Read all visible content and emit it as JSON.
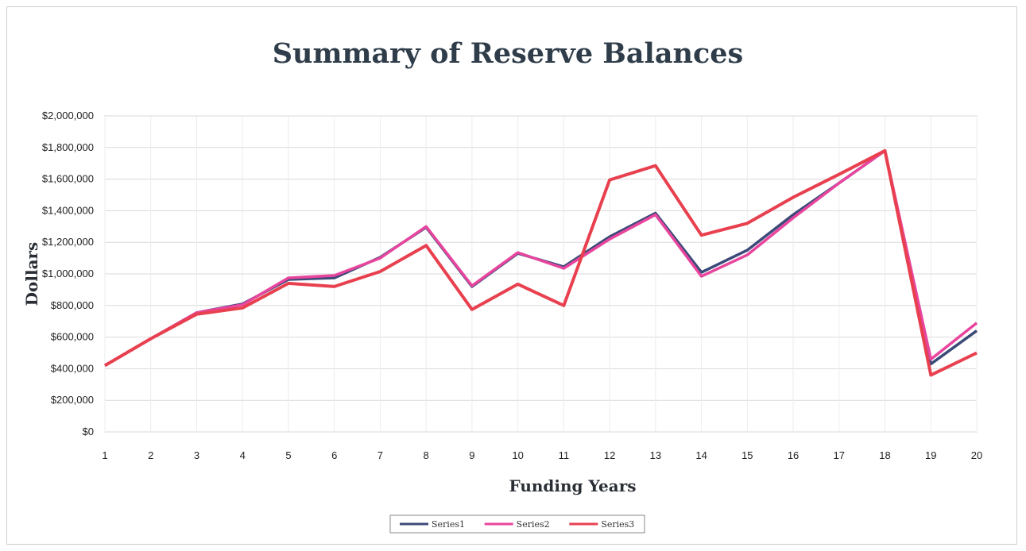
{
  "chart_data": {
    "type": "line",
    "title": "Summary of Reserve Balances",
    "xlabel": "Funding Years",
    "ylabel": "Dollars",
    "x": [
      1,
      2,
      3,
      4,
      5,
      6,
      7,
      8,
      9,
      10,
      11,
      12,
      13,
      14,
      15,
      16,
      17,
      18,
      19,
      20
    ],
    "ylim": [
      0,
      2000000
    ],
    "yticks": [
      0,
      200000,
      400000,
      600000,
      800000,
      1000000,
      1200000,
      1400000,
      1600000,
      1800000,
      2000000
    ],
    "ytick_labels": [
      "$0",
      "$200,000",
      "$400,000",
      "$600,000",
      "$800,000",
      "$1,000,000",
      "$1,200,000",
      "$1,400,000",
      "$1,600,000",
      "$1,800,000",
      "$2,000,000"
    ],
    "grid": true,
    "legend_position": "bottom",
    "series": [
      {
        "name": "Series1",
        "color": "#3b4a78",
        "values": [
          420000,
          590000,
          755000,
          810000,
          965000,
          975000,
          1105000,
          1295000,
          920000,
          1130000,
          1045000,
          1235000,
          1385000,
          1010000,
          1150000,
          1375000,
          1575000,
          1780000,
          430000,
          640000
        ]
      },
      {
        "name": "Series2",
        "color": "#e8459e",
        "values": [
          420000,
          590000,
          755000,
          805000,
          975000,
          990000,
          1100000,
          1300000,
          925000,
          1135000,
          1035000,
          1220000,
          1375000,
          985000,
          1120000,
          1355000,
          1575000,
          1780000,
          460000,
          690000
        ]
      },
      {
        "name": "Series3",
        "color": "#e8404f",
        "values": [
          420000,
          590000,
          745000,
          785000,
          940000,
          920000,
          1015000,
          1180000,
          775000,
          935000,
          800000,
          1595000,
          1685000,
          1245000,
          1320000,
          1485000,
          1630000,
          1780000,
          360000,
          500000
        ]
      }
    ]
  }
}
